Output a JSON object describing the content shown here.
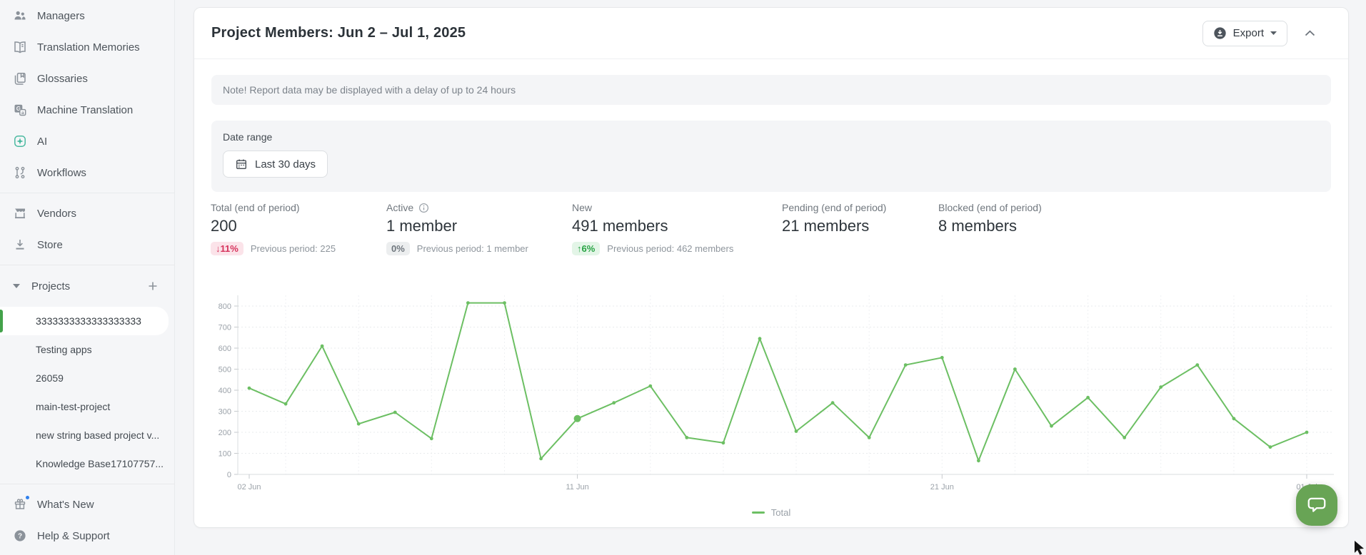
{
  "sidebar": {
    "nav_items": [
      {
        "label": "Managers",
        "icon": "managers-icon"
      },
      {
        "label": "Translation Memories",
        "icon": "translation-memories-icon"
      },
      {
        "label": "Glossaries",
        "icon": "glossaries-icon"
      },
      {
        "label": "Machine Translation",
        "icon": "machine-translation-icon"
      },
      {
        "label": "AI",
        "icon": "ai-icon"
      },
      {
        "label": "Workflows",
        "icon": "workflows-icon"
      }
    ],
    "secondary_items": [
      {
        "label": "Vendors",
        "icon": "vendors-icon"
      },
      {
        "label": "Store",
        "icon": "store-icon"
      }
    ],
    "projects_header": {
      "label": "Projects"
    },
    "projects": [
      {
        "label": "3333333333333333333",
        "selected": true
      },
      {
        "label": "Testing apps",
        "selected": false
      },
      {
        "label": "26059",
        "selected": false
      },
      {
        "label": "main-test-project",
        "selected": false
      },
      {
        "label": "new string based project v...",
        "selected": false
      },
      {
        "label": "Knowledge Base17107757...",
        "selected": false
      }
    ],
    "footer_items": [
      {
        "label": "What's New",
        "icon": "whats-new-icon",
        "has_notification_dot": true
      },
      {
        "label": "Help & Support",
        "icon": "help-icon",
        "has_notification_dot": false
      }
    ]
  },
  "report": {
    "title": "Project Members: Jun 2 – Jul 1, 2025",
    "export_label": "Export",
    "note": "Note! Report data may be displayed with a delay of up to 24 hours",
    "date_range_label": "Date range",
    "date_range_value": "Last 30 days"
  },
  "stats": [
    {
      "label": "Total (end of period)",
      "value": "200",
      "badge": "↓11%",
      "badge_type": "negative",
      "previous": "Previous period: 225"
    },
    {
      "label": "Active",
      "value": "1 member",
      "badge": "0%",
      "badge_type": "neutral",
      "previous": "Previous period: 1 member",
      "has_info_icon": true
    },
    {
      "label": "New",
      "value": "491 members",
      "badge": "↑6%",
      "badge_type": "positive",
      "previous": "Previous period: 462 members"
    },
    {
      "label": "Pending (end of period)",
      "value": "21 members"
    },
    {
      "label": "Blocked (end of period)",
      "value": "8 members"
    }
  ],
  "chart_data": {
    "type": "line",
    "title": "Project Members: Jun 2 – Jul 1, 2025",
    "x": [
      "02 Jun",
      "03 Jun",
      "04 Jun",
      "05 Jun",
      "06 Jun",
      "07 Jun",
      "08 Jun",
      "09 Jun",
      "10 Jun",
      "11 Jun",
      "12 Jun",
      "13 Jun",
      "14 Jun",
      "15 Jun",
      "16 Jun",
      "17 Jun",
      "18 Jun",
      "19 Jun",
      "20 Jun",
      "21 Jun",
      "22 Jun",
      "23 Jun",
      "24 Jun",
      "25 Jun",
      "26 Jun",
      "27 Jun",
      "28 Jun",
      "29 Jun",
      "30 Jun",
      "01 Jul"
    ],
    "x_tick_indices": [
      0,
      9,
      19,
      29
    ],
    "y_ticks": [
      0,
      100,
      200,
      300,
      400,
      500,
      600,
      700,
      800
    ],
    "ylim": [
      0,
      850
    ],
    "grid": "dashed",
    "legend_position": "bottom-center",
    "highlight_index": 9,
    "series": [
      {
        "name": "Total",
        "color": "#6cbf63",
        "values": [
          410,
          335,
          610,
          240,
          295,
          170,
          815,
          815,
          75,
          265,
          340,
          420,
          175,
          150,
          645,
          205,
          340,
          175,
          520,
          555,
          65,
          500,
          230,
          365,
          175,
          415,
          520,
          265,
          130,
          200
        ]
      }
    ]
  },
  "colors": {
    "chart_line": "#6cbf63",
    "badge_negative": "#d6335c",
    "badge_positive": "#27a343",
    "selected_project_bar": "#43a24a",
    "chat_launcher": "#68a455",
    "ai_icon_accent": "#4ab9a0",
    "whats_new_dot": "#2f80ed"
  }
}
